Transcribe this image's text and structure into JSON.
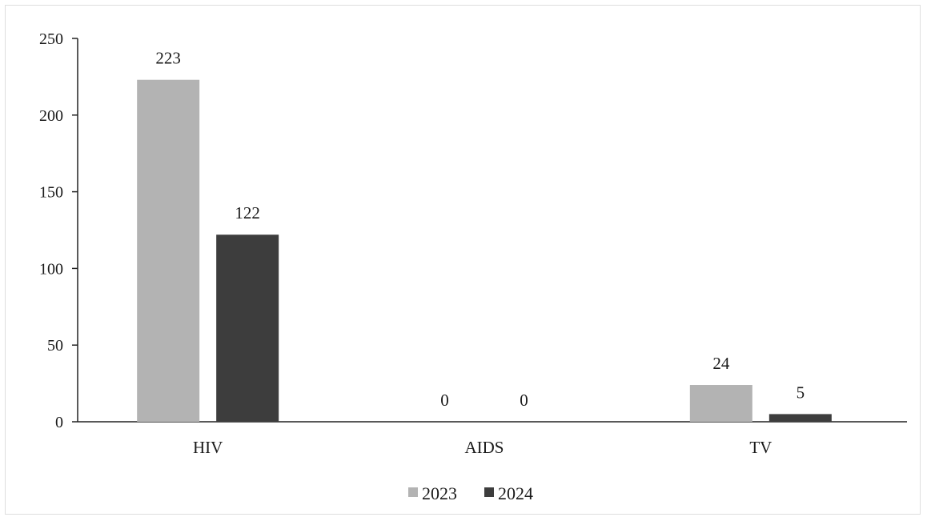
{
  "chart_data": {
    "type": "bar",
    "categories": [
      "HIV",
      "AIDS",
      "TV"
    ],
    "series": [
      {
        "name": "2023",
        "values": [
          223,
          0,
          24
        ],
        "color": "#b3b3b3"
      },
      {
        "name": "2024",
        "values": [
          122,
          0,
          5
        ],
        "color": "#3d3d3d"
      }
    ],
    "data_labels": [
      [
        "223",
        "0",
        "24"
      ],
      [
        "122",
        "0",
        "5"
      ]
    ],
    "y_ticks": [
      "0",
      "50",
      "100",
      "150",
      "200",
      "250"
    ],
    "ylim": [
      0,
      250
    ],
    "title": "",
    "xlabel": "",
    "ylabel": "",
    "grid": false,
    "legend_position": "bottom"
  }
}
